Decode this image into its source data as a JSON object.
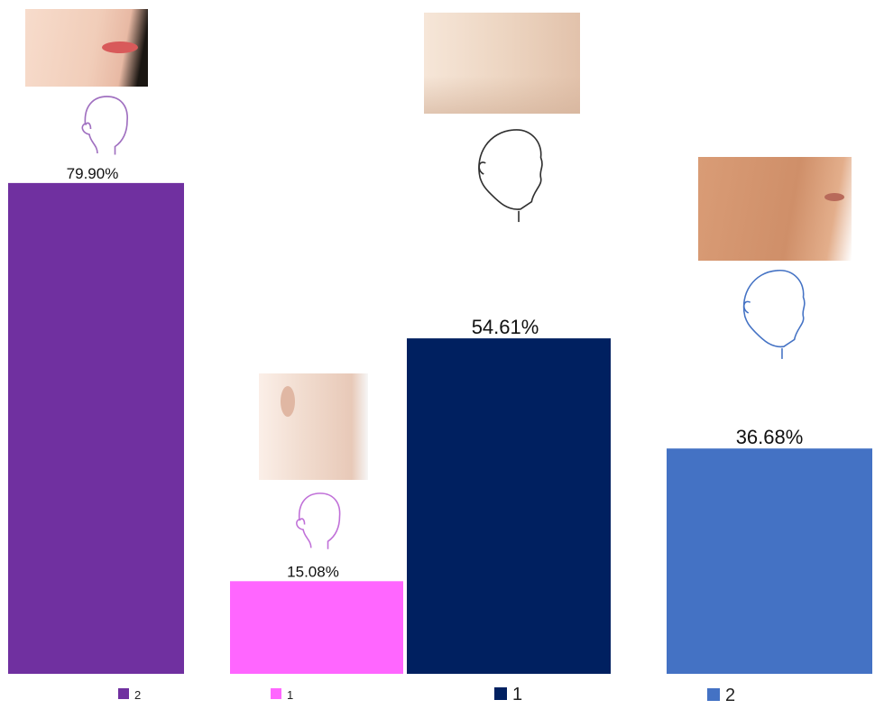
{
  "chart_data": {
    "type": "bar",
    "categories": [
      "2",
      "1",
      "1",
      "2"
    ],
    "values": [
      79.9,
      15.08,
      54.61,
      36.68
    ],
    "value_labels": [
      "79.90%",
      "15.08%",
      "54.61%",
      "36.68%"
    ],
    "colors": [
      "#7030a0",
      "#ff66ff",
      "#002060",
      "#4472c4"
    ],
    "legend": [
      {
        "label": "2",
        "color": "#7030a0"
      },
      {
        "label": "1",
        "color": "#ff66ff"
      },
      {
        "label": "1",
        "color": "#002060"
      },
      {
        "label": "2",
        "color": "#4472c4"
      }
    ],
    "legend_position": "bottom",
    "grid": false,
    "ylim": [
      0,
      100
    ]
  },
  "icons": [
    "female-face-photo",
    "female-head-outline-icon",
    "female-side-face-photo",
    "female-head-outline-icon",
    "male-side-face-photo",
    "male-head-outline-icon",
    "male-side-face-photo",
    "male-head-outline-icon"
  ]
}
